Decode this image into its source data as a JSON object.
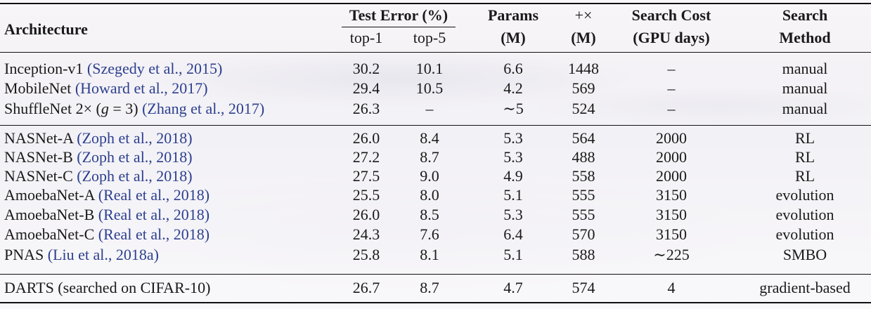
{
  "header": {
    "architecture": "Architecture",
    "test_error": "Test Error (%)",
    "top1": "top-1",
    "top5": "top-5",
    "params_line1": "Params",
    "params_line2": "(M)",
    "mult_line1": "+×",
    "mult_line2": "(M)",
    "cost_line1": "Search Cost",
    "cost_line2": "(GPU days)",
    "method_line1": "Search",
    "method_line2": "Method"
  },
  "rows": [
    {
      "arch": "Inception-v1 ",
      "cite": "(Szegedy et al., 2015)",
      "top1": "30.2",
      "top5": "10.1",
      "params": "6.6",
      "mult": "1448",
      "cost": "–",
      "method": "manual"
    },
    {
      "arch": "MobileNet ",
      "cite": "(Howard et al., 2017)",
      "top1": "29.4",
      "top5": "10.5",
      "params": "4.2",
      "mult": "569",
      "cost": "–",
      "method": "manual"
    },
    {
      "arch": "ShuffleNet 2× (",
      "arch_math": "g",
      "arch_tail": " = 3) ",
      "cite": "(Zhang et al., 2017)",
      "top1": "26.3",
      "top5": "–",
      "params": "∼5",
      "mult": "524",
      "cost": "–",
      "method": "manual"
    },
    {
      "arch": "NASNet-A ",
      "cite": "(Zoph et al., 2018)",
      "top1": "26.0",
      "top5": "8.4",
      "params": "5.3",
      "mult": "564",
      "cost": "2000",
      "method": "RL"
    },
    {
      "arch": "NASNet-B ",
      "cite": "(Zoph et al., 2018)",
      "top1": "27.2",
      "top5": "8.7",
      "params": "5.3",
      "mult": "488",
      "cost": "2000",
      "method": "RL"
    },
    {
      "arch": "NASNet-C ",
      "cite": "(Zoph et al., 2018)",
      "top1": "27.5",
      "top5": "9.0",
      "params": "4.9",
      "mult": "558",
      "cost": "2000",
      "method": "RL"
    },
    {
      "arch": "AmoebaNet-A ",
      "cite": "(Real et al., 2018)",
      "top1": "25.5",
      "top5": "8.0",
      "params": "5.1",
      "mult": "555",
      "cost": "3150",
      "method": "evolution"
    },
    {
      "arch": "AmoebaNet-B ",
      "cite": "(Real et al., 2018)",
      "top1": "26.0",
      "top5": "8.5",
      "params": "5.3",
      "mult": "555",
      "cost": "3150",
      "method": "evolution"
    },
    {
      "arch": "AmoebaNet-C ",
      "cite": "(Real et al., 2018)",
      "top1": "24.3",
      "top5": "7.6",
      "params": "6.4",
      "mult": "570",
      "cost": "3150",
      "method": "evolution"
    },
    {
      "arch": "PNAS ",
      "cite": "(Liu et al., 2018a)",
      "top1": "25.8",
      "top5": "8.1",
      "params": "5.1",
      "mult": "588",
      "cost": "∼225",
      "method": "SMBO"
    },
    {
      "arch": "DARTS (searched on CIFAR-10)",
      "cite": "",
      "top1": "26.7",
      "top5": "8.7",
      "params": "4.7",
      "mult": "574",
      "cost": "4",
      "method": "gradient-based"
    }
  ]
}
